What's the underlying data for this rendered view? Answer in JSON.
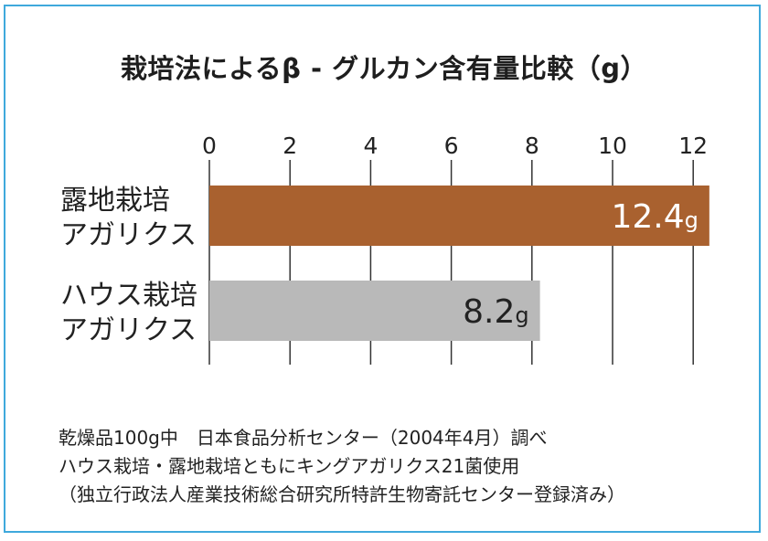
{
  "chart_data": {
    "type": "bar",
    "orientation": "horizontal",
    "title": "栽培法によるβ - グルカン含有量比較（g）",
    "x_ticks": [
      "0",
      "2",
      "4",
      "6",
      "8",
      "10",
      "12"
    ],
    "xlim": [
      0,
      12.5
    ],
    "grid": true,
    "categories": [
      [
        "露地栽培",
        "アガリクス"
      ],
      [
        "ハウス栽培",
        "アガリクス"
      ]
    ],
    "values": [
      12.4,
      8.2
    ],
    "value_labels": [
      "12.4",
      "8.2"
    ],
    "value_unit": "g",
    "colors": [
      "#a9612f",
      "#b9b9b9"
    ]
  },
  "notes": [
    "乾燥品100g中　日本食品分析センター（2004年4月）調べ",
    "ハウス栽培・露地栽培ともにキングアガリクス21菌使用",
    "（独立行政法人産業技術総合研究所特許生物寄託センター登録済み）"
  ],
  "colors": {
    "frame": "#3fa9dc",
    "grid": "#333333"
  }
}
